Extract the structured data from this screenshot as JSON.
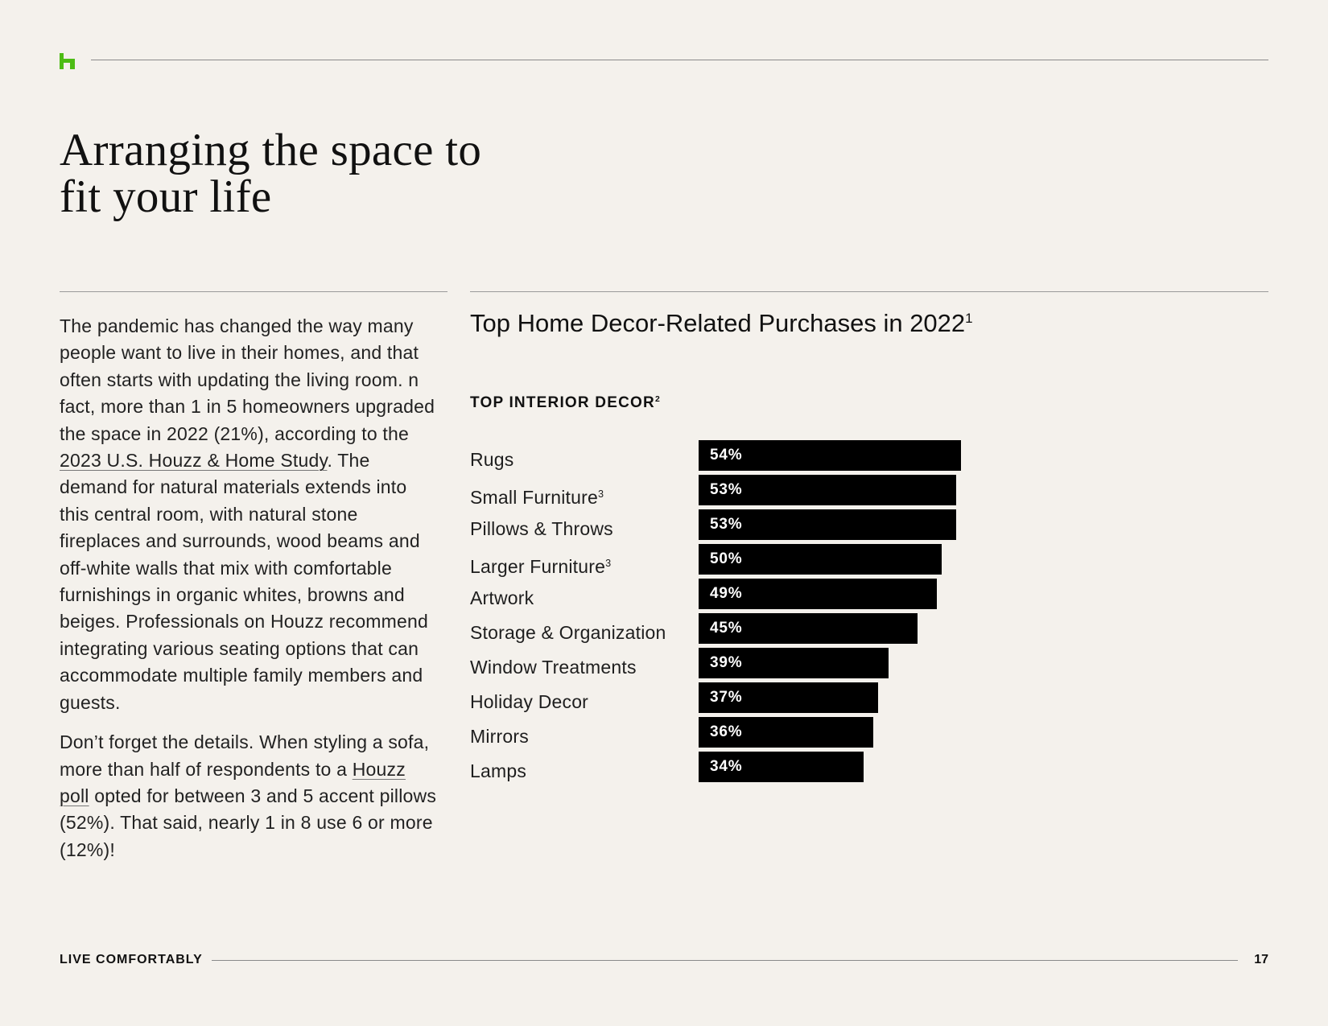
{
  "header": {
    "logo_icon": "houzz-h-icon",
    "logo_color": "#4dbc15"
  },
  "headline": {
    "line1": "Arranging the space to",
    "line2": "fit your life"
  },
  "body": {
    "p1_a": "The pandemic has changed the way many people want to live in their homes, and that often starts with updating the living room. n fact, more than 1 in 5 homeowners upgraded the space in 2022 (21%), according to the ",
    "p1_link": "2023 U.S. Houzz & Home Study",
    "p1_b": ". The demand for natural materials extends into this central room, with natural stone fireplaces and surrounds, wood beams and off-white walls that mix with comfortable furnishings in organic whites, browns and beiges. Professionals on Houzz recommend integrating various seating options that can accommodate multiple family members and guests.",
    "p2_a": "Don’t forget the details. When styling a sofa, more than half of respondents to a ",
    "p2_link": "Houzz poll",
    "p2_b": " opted for between 3 and 5 accent pillows (52%). That said, nearly 1 in 8 use 6 or more (12%)!"
  },
  "chart_heading": {
    "title": "Top Home Decor-Related Purchases in 2022",
    "title_sup": "1",
    "subtitle": "TOP INTERIOR DECOR",
    "subtitle_sup": "2"
  },
  "chart_data": {
    "type": "bar",
    "orientation": "horizontal",
    "categories": [
      "Rugs",
      "Small Furniture",
      "Pillows & Throws",
      "Larger Furniture",
      "Artwork",
      "Storage & Organization",
      "Window Treatments",
      "Holiday Decor",
      "Mirrors",
      "Lamps"
    ],
    "category_superscripts": [
      "",
      "3",
      "",
      "3",
      "",
      "",
      "",
      "",
      "",
      ""
    ],
    "values": [
      54,
      53,
      53,
      50,
      49,
      45,
      39,
      37,
      36,
      34
    ],
    "value_labels": [
      "54%",
      "53%",
      "53%",
      "50%",
      "49%",
      "45%",
      "39%",
      "37%",
      "36%",
      "34%"
    ],
    "title": "Top Home Decor-Related Purchases in 2022",
    "bar_color": "#000000",
    "label_color": "#ffffff"
  },
  "footer": {
    "section": "LIVE COMFORTABLY",
    "page_number": "17"
  }
}
